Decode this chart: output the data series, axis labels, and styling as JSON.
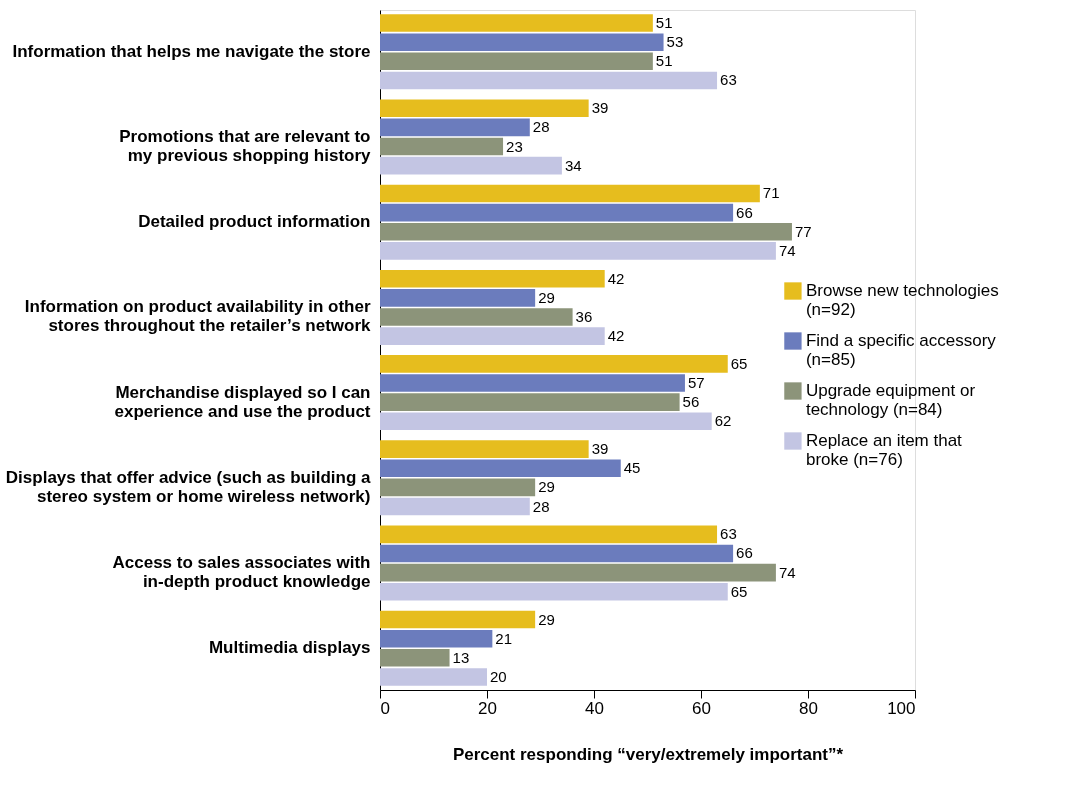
{
  "chart_data": {
    "type": "bar",
    "orientation": "horizontal",
    "categories": [
      "Information that helps me navigate the store",
      "Promotions that are relevant to\nmy previous shopping history",
      "Detailed product information",
      "Information on product availability in other\nstores throughout the retailer’s network",
      "Merchandise displayed so I can\nexperience and use the product",
      "Displays that offer advice (such as building a\nstereo system or home wireless network)",
      "Access to sales associates with\nin-depth product knowledge",
      "Multimedia displays"
    ],
    "series": [
      {
        "name": "Browse new technologies\n(n=92)",
        "color": "#e6bd1e",
        "values": [
          51,
          39,
          71,
          42,
          65,
          39,
          63,
          29
        ]
      },
      {
        "name": "Find a specific accessory\n(n=85)",
        "color": "#6b7cbd",
        "values": [
          53,
          28,
          66,
          29,
          57,
          45,
          66,
          21
        ]
      },
      {
        "name": "Upgrade equipment or\ntechnology (n=84)",
        "color": "#8c947a",
        "values": [
          51,
          23,
          77,
          36,
          56,
          29,
          74,
          13
        ]
      },
      {
        "name": "Replace an item that\nbroke (n=76)",
        "color": "#c3c5e3",
        "values": [
          63,
          34,
          74,
          42,
          62,
          28,
          65,
          20
        ]
      }
    ],
    "xlabel": "Percent responding “very/extremely important”*",
    "xlim": [
      0,
      100
    ],
    "xticks": [
      0,
      20,
      40,
      60,
      80,
      100
    ],
    "data_labels": true,
    "grid": false,
    "legend": "right"
  }
}
